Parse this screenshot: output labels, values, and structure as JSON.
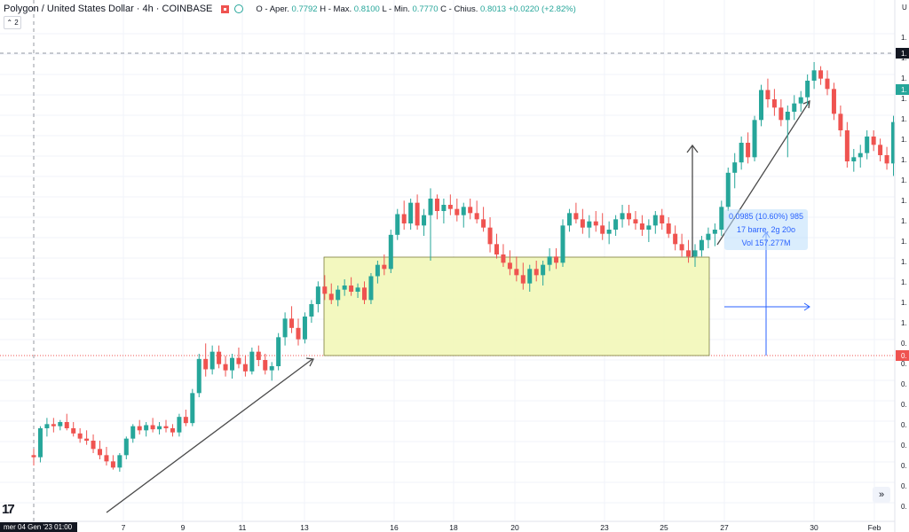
{
  "header": {
    "title": "Polygon / United States Dollar · 4h · COINBASE",
    "ohlc": {
      "open_label": "O - Aper.",
      "open": "0.7792",
      "high_label": "H - Max.",
      "high": "0.8100",
      "low_label": "L - Min.",
      "low": "0.7770",
      "close_label": "C - Chius.",
      "close": "0.8013",
      "change": "+0.0220 (+2.82%)"
    },
    "collapse_label": "⌃ 2"
  },
  "measure": {
    "line1": "0.0985 (10.60%) 985",
    "line2": "17 barre, 2g 20o",
    "line3": "Vol 157.277M"
  },
  "date_badge": "mer 04 Gen '23   01:00",
  "scroll_icon": "»",
  "logo_text": "17",
  "colors": {
    "up": "#26a69a",
    "down": "#ef5350",
    "box_fill": "#f1f7b4",
    "box_border": "#7a7a3a",
    "measure": "#2962ff"
  },
  "chart_data": {
    "type": "candlestick",
    "symbol": "MATICUSD",
    "timeframe": "4h",
    "x_ticks": [
      "7",
      "9",
      "11",
      "13",
      "16",
      "18",
      "20",
      "23",
      "25",
      "27",
      "30",
      "Feb"
    ],
    "y_axis_label_visible": "U",
    "y_range_hint": [
      0.76,
      1.24
    ],
    "price_readout_right": [
      "1.",
      "1.",
      "0."
    ],
    "grid": true,
    "candles": [
      {
        "x": 0,
        "o": 0.812,
        "h": 0.818,
        "l": 0.802,
        "c": 0.81
      },
      {
        "x": 1,
        "o": 0.81,
        "h": 0.84,
        "l": 0.805,
        "c": 0.838
      },
      {
        "x": 2,
        "o": 0.838,
        "h": 0.848,
        "l": 0.83,
        "c": 0.842
      },
      {
        "x": 3,
        "o": 0.842,
        "h": 0.848,
        "l": 0.834,
        "c": 0.84
      },
      {
        "x": 4,
        "o": 0.84,
        "h": 0.846,
        "l": 0.836,
        "c": 0.844
      },
      {
        "x": 5,
        "o": 0.844,
        "h": 0.852,
        "l": 0.836,
        "c": 0.838
      },
      {
        "x": 6,
        "o": 0.838,
        "h": 0.844,
        "l": 0.83,
        "c": 0.833
      },
      {
        "x": 7,
        "o": 0.833,
        "h": 0.838,
        "l": 0.824,
        "c": 0.828
      },
      {
        "x": 8,
        "o": 0.828,
        "h": 0.836,
        "l": 0.822,
        "c": 0.826
      },
      {
        "x": 9,
        "o": 0.826,
        "h": 0.832,
        "l": 0.814,
        "c": 0.818
      },
      {
        "x": 10,
        "o": 0.818,
        "h": 0.826,
        "l": 0.808,
        "c": 0.812
      },
      {
        "x": 11,
        "o": 0.812,
        "h": 0.82,
        "l": 0.802,
        "c": 0.806
      },
      {
        "x": 12,
        "o": 0.806,
        "h": 0.812,
        "l": 0.798,
        "c": 0.8
      },
      {
        "x": 13,
        "o": 0.8,
        "h": 0.814,
        "l": 0.796,
        "c": 0.812
      },
      {
        "x": 14,
        "o": 0.812,
        "h": 0.83,
        "l": 0.808,
        "c": 0.828
      },
      {
        "x": 15,
        "o": 0.828,
        "h": 0.842,
        "l": 0.824,
        "c": 0.84
      },
      {
        "x": 16,
        "o": 0.84,
        "h": 0.846,
        "l": 0.832,
        "c": 0.836
      },
      {
        "x": 17,
        "o": 0.836,
        "h": 0.844,
        "l": 0.83,
        "c": 0.841
      },
      {
        "x": 18,
        "o": 0.841,
        "h": 0.848,
        "l": 0.834,
        "c": 0.837
      },
      {
        "x": 19,
        "o": 0.837,
        "h": 0.844,
        "l": 0.832,
        "c": 0.84
      },
      {
        "x": 20,
        "o": 0.84,
        "h": 0.846,
        "l": 0.834,
        "c": 0.838
      },
      {
        "x": 21,
        "o": 0.838,
        "h": 0.842,
        "l": 0.83,
        "c": 0.834
      },
      {
        "x": 22,
        "o": 0.834,
        "h": 0.852,
        "l": 0.83,
        "c": 0.849
      },
      {
        "x": 23,
        "o": 0.849,
        "h": 0.856,
        "l": 0.84,
        "c": 0.843
      },
      {
        "x": 24,
        "o": 0.843,
        "h": 0.876,
        "l": 0.84,
        "c": 0.872
      },
      {
        "x": 25,
        "o": 0.872,
        "h": 0.91,
        "l": 0.868,
        "c": 0.905
      },
      {
        "x": 26,
        "o": 0.905,
        "h": 0.92,
        "l": 0.888,
        "c": 0.895
      },
      {
        "x": 27,
        "o": 0.895,
        "h": 0.918,
        "l": 0.89,
        "c": 0.912
      },
      {
        "x": 28,
        "o": 0.912,
        "h": 0.918,
        "l": 0.896,
        "c": 0.9
      },
      {
        "x": 29,
        "o": 0.9,
        "h": 0.908,
        "l": 0.888,
        "c": 0.894
      },
      {
        "x": 30,
        "o": 0.894,
        "h": 0.91,
        "l": 0.886,
        "c": 0.906
      },
      {
        "x": 31,
        "o": 0.906,
        "h": 0.916,
        "l": 0.896,
        "c": 0.9
      },
      {
        "x": 32,
        "o": 0.9,
        "h": 0.908,
        "l": 0.888,
        "c": 0.893
      },
      {
        "x": 33,
        "o": 0.893,
        "h": 0.916,
        "l": 0.89,
        "c": 0.912
      },
      {
        "x": 34,
        "o": 0.912,
        "h": 0.918,
        "l": 0.898,
        "c": 0.904
      },
      {
        "x": 35,
        "o": 0.904,
        "h": 0.91,
        "l": 0.89,
        "c": 0.894
      },
      {
        "x": 36,
        "o": 0.894,
        "h": 0.902,
        "l": 0.884,
        "c": 0.898
      },
      {
        "x": 37,
        "o": 0.898,
        "h": 0.93,
        "l": 0.894,
        "c": 0.926
      },
      {
        "x": 38,
        "o": 0.926,
        "h": 0.95,
        "l": 0.918,
        "c": 0.944
      },
      {
        "x": 39,
        "o": 0.944,
        "h": 0.956,
        "l": 0.93,
        "c": 0.935
      },
      {
        "x": 40,
        "o": 0.935,
        "h": 0.944,
        "l": 0.918,
        "c": 0.924
      },
      {
        "x": 41,
        "o": 0.924,
        "h": 0.95,
        "l": 0.92,
        "c": 0.946
      },
      {
        "x": 42,
        "o": 0.946,
        "h": 0.962,
        "l": 0.94,
        "c": 0.958
      },
      {
        "x": 43,
        "o": 0.958,
        "h": 0.98,
        "l": 0.95,
        "c": 0.975
      },
      {
        "x": 44,
        "o": 0.975,
        "h": 0.986,
        "l": 0.962,
        "c": 0.968
      },
      {
        "x": 45,
        "o": 0.968,
        "h": 0.978,
        "l": 0.958,
        "c": 0.962
      },
      {
        "x": 46,
        "o": 0.962,
        "h": 0.976,
        "l": 0.956,
        "c": 0.972
      },
      {
        "x": 47,
        "o": 0.972,
        "h": 0.982,
        "l": 0.966,
        "c": 0.976
      },
      {
        "x": 48,
        "o": 0.976,
        "h": 0.984,
        "l": 0.966,
        "c": 0.97
      },
      {
        "x": 49,
        "o": 0.97,
        "h": 0.978,
        "l": 0.964,
        "c": 0.974
      },
      {
        "x": 50,
        "o": 0.974,
        "h": 0.98,
        "l": 0.958,
        "c": 0.962
      },
      {
        "x": 51,
        "o": 0.962,
        "h": 0.988,
        "l": 0.958,
        "c": 0.985
      },
      {
        "x": 52,
        "o": 0.985,
        "h": 1.0,
        "l": 0.978,
        "c": 0.996
      },
      {
        "x": 53,
        "o": 0.996,
        "h": 1.006,
        "l": 0.986,
        "c": 0.992
      },
      {
        "x": 54,
        "o": 0.992,
        "h": 1.03,
        "l": 0.988,
        "c": 1.025
      },
      {
        "x": 55,
        "o": 1.025,
        "h": 1.05,
        "l": 1.02,
        "c": 1.045
      },
      {
        "x": 56,
        "o": 1.045,
        "h": 1.058,
        "l": 1.03,
        "c": 1.036
      },
      {
        "x": 57,
        "o": 1.036,
        "h": 1.06,
        "l": 1.03,
        "c": 1.056
      },
      {
        "x": 58,
        "o": 1.056,
        "h": 1.064,
        "l": 1.03,
        "c": 1.034
      },
      {
        "x": 59,
        "o": 1.034,
        "h": 1.05,
        "l": 1.024,
        "c": 1.044
      },
      {
        "x": 60,
        "o": 1.044,
        "h": 1.07,
        "l": 1.0,
        "c": 1.06
      },
      {
        "x": 61,
        "o": 1.06,
        "h": 1.064,
        "l": 1.04,
        "c": 1.048
      },
      {
        "x": 62,
        "o": 1.048,
        "h": 1.06,
        "l": 1.036,
        "c": 1.054
      },
      {
        "x": 63,
        "o": 1.054,
        "h": 1.064,
        "l": 1.044,
        "c": 1.05
      },
      {
        "x": 64,
        "o": 1.05,
        "h": 1.06,
        "l": 1.038,
        "c": 1.044
      },
      {
        "x": 65,
        "o": 1.044,
        "h": 1.056,
        "l": 1.032,
        "c": 1.052
      },
      {
        "x": 66,
        "o": 1.052,
        "h": 1.06,
        "l": 1.04,
        "c": 1.046
      },
      {
        "x": 67,
        "o": 1.046,
        "h": 1.058,
        "l": 1.036,
        "c": 1.04
      },
      {
        "x": 68,
        "o": 1.04,
        "h": 1.052,
        "l": 1.028,
        "c": 1.032
      },
      {
        "x": 69,
        "o": 1.032,
        "h": 1.042,
        "l": 1.008,
        "c": 1.016
      },
      {
        "x": 70,
        "o": 1.016,
        "h": 1.026,
        "l": 1.002,
        "c": 1.006
      },
      {
        "x": 71,
        "o": 1.006,
        "h": 1.016,
        "l": 0.994,
        "c": 0.998
      },
      {
        "x": 72,
        "o": 0.998,
        "h": 1.01,
        "l": 0.986,
        "c": 0.992
      },
      {
        "x": 73,
        "o": 0.992,
        "h": 1.004,
        "l": 0.98,
        "c": 0.986
      },
      {
        "x": 74,
        "o": 0.986,
        "h": 0.998,
        "l": 0.972,
        "c": 0.978
      },
      {
        "x": 75,
        "o": 0.978,
        "h": 0.996,
        "l": 0.97,
        "c": 0.992
      },
      {
        "x": 76,
        "o": 0.992,
        "h": 1.0,
        "l": 0.98,
        "c": 0.986
      },
      {
        "x": 77,
        "o": 0.986,
        "h": 1.0,
        "l": 0.976,
        "c": 0.996
      },
      {
        "x": 78,
        "o": 0.996,
        "h": 1.012,
        "l": 0.99,
        "c": 1.004
      },
      {
        "x": 79,
        "o": 1.004,
        "h": 1.012,
        "l": 0.992,
        "c": 0.998
      },
      {
        "x": 80,
        "o": 0.998,
        "h": 1.04,
        "l": 0.994,
        "c": 1.034
      },
      {
        "x": 81,
        "o": 1.034,
        "h": 1.05,
        "l": 1.028,
        "c": 1.046
      },
      {
        "x": 82,
        "o": 1.046,
        "h": 1.056,
        "l": 1.036,
        "c": 1.04
      },
      {
        "x": 83,
        "o": 1.04,
        "h": 1.05,
        "l": 1.026,
        "c": 1.032
      },
      {
        "x": 84,
        "o": 1.032,
        "h": 1.044,
        "l": 1.022,
        "c": 1.038
      },
      {
        "x": 85,
        "o": 1.038,
        "h": 1.048,
        "l": 1.028,
        "c": 1.034
      },
      {
        "x": 86,
        "o": 1.034,
        "h": 1.046,
        "l": 1.02,
        "c": 1.026
      },
      {
        "x": 87,
        "o": 1.026,
        "h": 1.038,
        "l": 1.016,
        "c": 1.03
      },
      {
        "x": 88,
        "o": 1.03,
        "h": 1.044,
        "l": 1.024,
        "c": 1.04
      },
      {
        "x": 89,
        "o": 1.04,
        "h": 1.054,
        "l": 1.032,
        "c": 1.046
      },
      {
        "x": 90,
        "o": 1.046,
        "h": 1.054,
        "l": 1.034,
        "c": 1.04
      },
      {
        "x": 91,
        "o": 1.04,
        "h": 1.048,
        "l": 1.03,
        "c": 1.036
      },
      {
        "x": 92,
        "o": 1.036,
        "h": 1.044,
        "l": 1.024,
        "c": 1.03
      },
      {
        "x": 93,
        "o": 1.03,
        "h": 1.04,
        "l": 1.018,
        "c": 1.034
      },
      {
        "x": 94,
        "o": 1.034,
        "h": 1.048,
        "l": 1.026,
        "c": 1.044
      },
      {
        "x": 95,
        "o": 1.044,
        "h": 1.05,
        "l": 1.03,
        "c": 1.036
      },
      {
        "x": 96,
        "o": 1.036,
        "h": 1.042,
        "l": 1.022,
        "c": 1.026
      },
      {
        "x": 97,
        "o": 1.026,
        "h": 1.034,
        "l": 1.01,
        "c": 1.016
      },
      {
        "x": 98,
        "o": 1.016,
        "h": 1.026,
        "l": 1.004,
        "c": 1.01
      },
      {
        "x": 99,
        "o": 1.01,
        "h": 1.02,
        "l": 0.998,
        "c": 1.004
      },
      {
        "x": 100,
        "o": 1.004,
        "h": 1.016,
        "l": 0.994,
        "c": 1.01
      },
      {
        "x": 101,
        "o": 1.01,
        "h": 1.024,
        "l": 1.004,
        "c": 1.02
      },
      {
        "x": 102,
        "o": 1.02,
        "h": 1.032,
        "l": 1.012,
        "c": 1.026
      },
      {
        "x": 103,
        "o": 1.026,
        "h": 1.036,
        "l": 1.014,
        "c": 1.03
      },
      {
        "x": 104,
        "o": 1.03,
        "h": 1.058,
        "l": 1.024,
        "c": 1.052
      },
      {
        "x": 105,
        "o": 1.052,
        "h": 1.09,
        "l": 1.048,
        "c": 1.085
      },
      {
        "x": 106,
        "o": 1.085,
        "h": 1.104,
        "l": 1.07,
        "c": 1.095
      },
      {
        "x": 107,
        "o": 1.095,
        "h": 1.12,
        "l": 1.088,
        "c": 1.114
      },
      {
        "x": 108,
        "o": 1.114,
        "h": 1.124,
        "l": 1.094,
        "c": 1.1
      },
      {
        "x": 109,
        "o": 1.1,
        "h": 1.14,
        "l": 1.096,
        "c": 1.136
      },
      {
        "x": 110,
        "o": 1.136,
        "h": 1.17,
        "l": 1.13,
        "c": 1.165
      },
      {
        "x": 111,
        "o": 1.165,
        "h": 1.176,
        "l": 1.148,
        "c": 1.156
      },
      {
        "x": 112,
        "o": 1.156,
        "h": 1.166,
        "l": 1.14,
        "c": 1.148
      },
      {
        "x": 113,
        "o": 1.148,
        "h": 1.156,
        "l": 1.13,
        "c": 1.136
      },
      {
        "x": 114,
        "o": 1.136,
        "h": 1.15,
        "l": 1.1,
        "c": 1.144
      },
      {
        "x": 115,
        "o": 1.144,
        "h": 1.16,
        "l": 1.136,
        "c": 1.152
      },
      {
        "x": 116,
        "o": 1.152,
        "h": 1.164,
        "l": 1.144,
        "c": 1.158
      },
      {
        "x": 117,
        "o": 1.158,
        "h": 1.18,
        "l": 1.15,
        "c": 1.174
      },
      {
        "x": 118,
        "o": 1.174,
        "h": 1.192,
        "l": 1.166,
        "c": 1.184
      },
      {
        "x": 119,
        "o": 1.184,
        "h": 1.188,
        "l": 1.17,
        "c": 1.176
      },
      {
        "x": 120,
        "o": 1.176,
        "h": 1.184,
        "l": 1.16,
        "c": 1.166
      },
      {
        "x": 121,
        "o": 1.166,
        "h": 1.172,
        "l": 1.136,
        "c": 1.142
      },
      {
        "x": 122,
        "o": 1.142,
        "h": 1.15,
        "l": 1.12,
        "c": 1.126
      },
      {
        "x": 123,
        "o": 1.126,
        "h": 1.134,
        "l": 1.09,
        "c": 1.096
      },
      {
        "x": 124,
        "o": 1.096,
        "h": 1.108,
        "l": 1.086,
        "c": 1.1
      },
      {
        "x": 125,
        "o": 1.1,
        "h": 1.112,
        "l": 1.09,
        "c": 1.104
      },
      {
        "x": 126,
        "o": 1.104,
        "h": 1.126,
        "l": 1.098,
        "c": 1.12
      },
      {
        "x": 127,
        "o": 1.12,
        "h": 1.126,
        "l": 1.106,
        "c": 1.112
      },
      {
        "x": 128,
        "o": 1.112,
        "h": 1.118,
        "l": 1.096,
        "c": 1.102
      },
      {
        "x": 129,
        "o": 1.102,
        "h": 1.11,
        "l": 1.088,
        "c": 1.094
      },
      {
        "x": 130,
        "o": 1.094,
        "h": 1.14,
        "l": 1.082,
        "c": 1.134
      }
    ]
  }
}
